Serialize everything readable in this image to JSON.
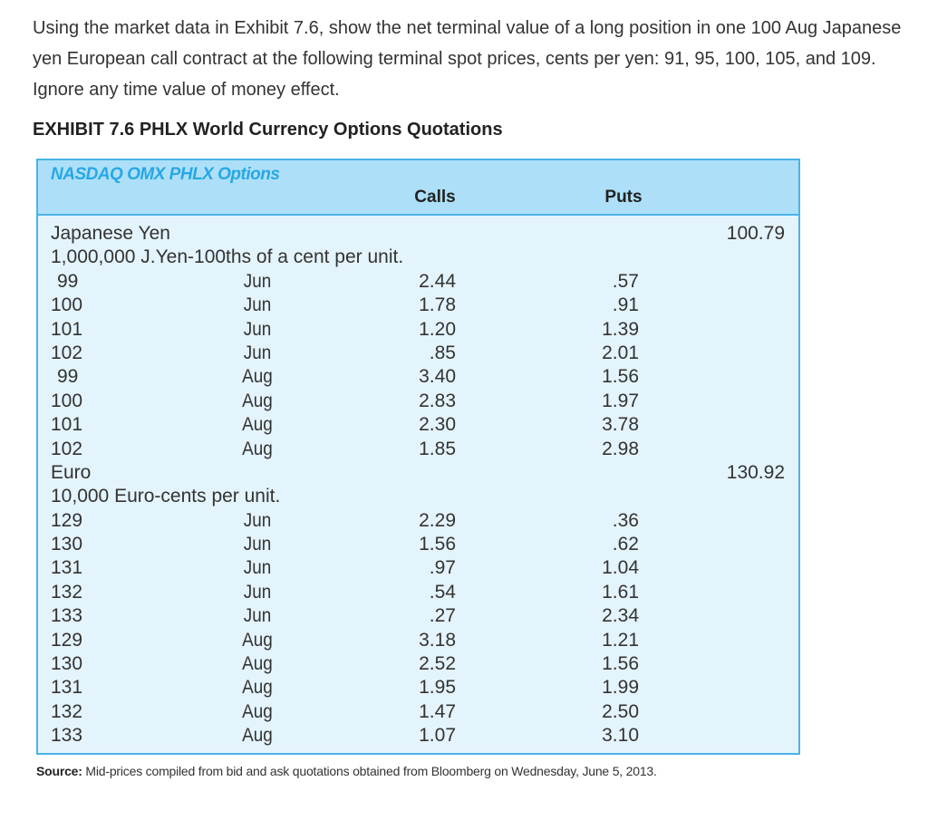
{
  "question": "Using the market data in Exhibit 7.6, show the net terminal value of a long position in one 100 Aug Japanese yen European call contract at the following terminal spot prices, cents per yen: 91, 95, 100, 105, and 109. Ignore any time value of money effect.",
  "exhibit_title": "EXHIBIT 7.6 PHLX World Currency Options Quotations",
  "table": {
    "brand": "NASDAQ OMX PHLX Options",
    "calls_header": "Calls",
    "puts_header": "Puts",
    "sections": [
      {
        "currency": "Japanese Yen",
        "spot": "100.79",
        "unit": "1,000,000 J.Yen-100ths of a cent per unit.",
        "rows": [
          {
            "strike": "99",
            "month": "Jun",
            "call": "2.44",
            "put": ".57"
          },
          {
            "strike": "100",
            "month": "Jun",
            "call": "1.78",
            "put": ".91"
          },
          {
            "strike": "101",
            "month": "Jun",
            "call": "1.20",
            "put": "1.39"
          },
          {
            "strike": "102",
            "month": "Jun",
            "call": ".85",
            "put": "2.01"
          },
          {
            "strike": "99",
            "month": "Aug",
            "call": "3.40",
            "put": "1.56"
          },
          {
            "strike": "100",
            "month": "Aug",
            "call": "2.83",
            "put": "1.97"
          },
          {
            "strike": "101",
            "month": "Aug",
            "call": "2.30",
            "put": "3.78"
          },
          {
            "strike": "102",
            "month": "Aug",
            "call": "1.85",
            "put": "2.98"
          }
        ]
      },
      {
        "currency": "Euro",
        "spot": "130.92",
        "unit": "10,000 Euro-cents per unit.",
        "rows": [
          {
            "strike": "129",
            "month": "Jun",
            "call": "2.29",
            "put": ".36"
          },
          {
            "strike": "130",
            "month": "Jun",
            "call": "1.56",
            "put": ".62"
          },
          {
            "strike": "131",
            "month": "Jun",
            "call": ".97",
            "put": "1.04"
          },
          {
            "strike": "132",
            "month": "Jun",
            "call": ".54",
            "put": "1.61"
          },
          {
            "strike": "133",
            "month": "Jun",
            "call": ".27",
            "put": "2.34"
          },
          {
            "strike": "129",
            "month": "Aug",
            "call": "3.18",
            "put": "1.21"
          },
          {
            "strike": "130",
            "month": "Aug",
            "call": "2.52",
            "put": "1.56"
          },
          {
            "strike": "131",
            "month": "Aug",
            "call": "1.95",
            "put": "1.99"
          },
          {
            "strike": "132",
            "month": "Aug",
            "call": "1.47",
            "put": "2.50"
          },
          {
            "strike": "133",
            "month": "Aug",
            "call": "1.07",
            "put": "3.10"
          }
        ]
      }
    ]
  },
  "source_label": "Source:",
  "source_text": " Mid-prices compiled from bid and ask quotations obtained from Bloomberg on Wednesday, June 5, 2013."
}
